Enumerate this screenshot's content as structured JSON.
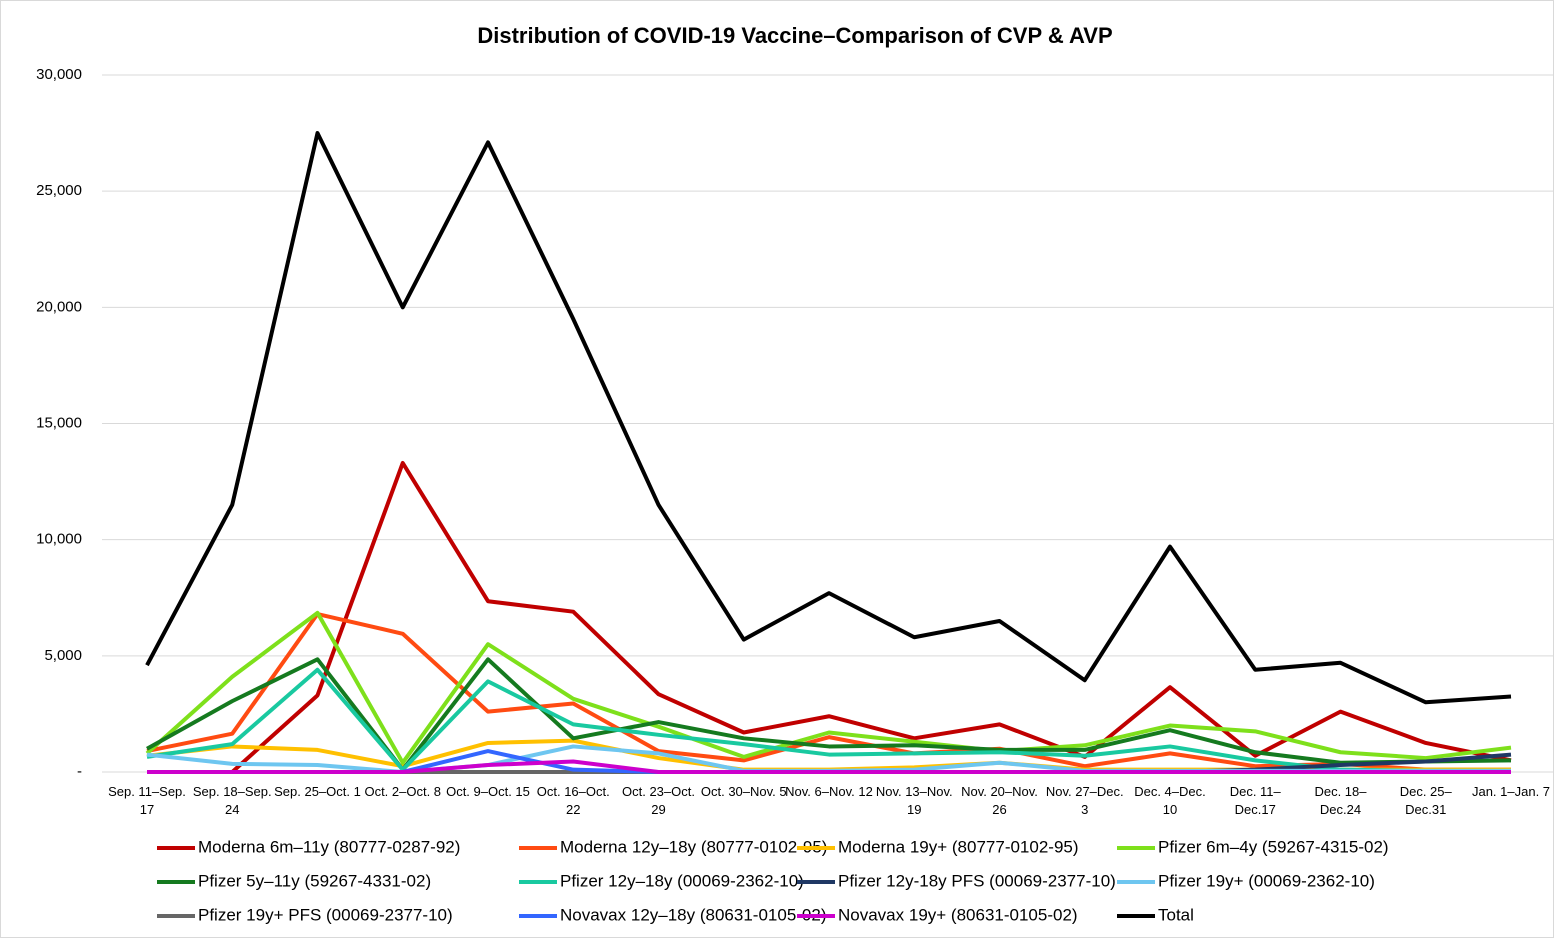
{
  "chart_data": {
    "type": "line",
    "title": "Distribution of COVID-19 Vaccine–Comparison of CVP & AVP",
    "categories": [
      "Sep. 11–Sep. 17",
      "Sep. 18–Sep. 24",
      "Sep. 25–Oct. 1",
      "Oct. 2–Oct. 8",
      "Oct. 9–Oct. 15",
      "Oct. 16–Oct. 22",
      "Oct. 23–Oct. 29",
      "Oct. 30–Nov. 5",
      "Nov. 6–Nov. 12",
      "Nov. 13–Nov. 19",
      "Nov. 20–Nov. 26",
      "Nov. 27–Dec. 3",
      "Dec. 4–Dec. 10",
      "Dec. 11–Dec.17",
      "Dec. 18–Dec.24",
      "Dec. 25–Dec.31",
      "Jan. 1–Jan. 7"
    ],
    "ylim": [
      0,
      30000
    ],
    "yticks": [
      {
        "value": 0,
        "label": "-"
      },
      {
        "value": 5000,
        "label": "5,000"
      },
      {
        "value": 10000,
        "label": "10,000"
      },
      {
        "value": 15000,
        "label": "15,000"
      },
      {
        "value": 20000,
        "label": "20,000"
      },
      {
        "value": 25000,
        "label": "25,000"
      },
      {
        "value": 30000,
        "label": "30,000"
      }
    ],
    "grid": true,
    "legend": "bottom",
    "series": [
      {
        "name": "Moderna 6m–11y (80777-0287-92)",
        "color": "#c00000",
        "values": [
          null,
          0,
          3300,
          13300,
          7350,
          6900,
          3350,
          1700,
          2400,
          1450,
          2050,
          650,
          3650,
          700,
          2600,
          1250,
          500
        ]
      },
      {
        "name": "Moderna 12y–18y (80777-0102-95)",
        "color": "#ff4b12",
        "values": [
          900,
          1650,
          6800,
          5950,
          2600,
          2950,
          900,
          500,
          1500,
          800,
          1000,
          250,
          800,
          250,
          350,
          100,
          100
        ]
      },
      {
        "name": "Moderna 19y+ (80777-0102-95)",
        "color": "#ffc000",
        "values": [
          700,
          1100,
          950,
          250,
          1250,
          1350,
          600,
          100,
          100,
          200,
          400,
          100,
          100,
          100,
          100,
          100,
          100
        ]
      },
      {
        "name": "Pfizer 6m–4y (59267-4315-02)",
        "color": "#7ee01b",
        "values": [
          800,
          4100,
          6850,
          400,
          5500,
          3150,
          1950,
          650,
          1700,
          1300,
          900,
          1150,
          2000,
          1750,
          850,
          600,
          1050
        ]
      },
      {
        "name": "Pfizer 5y–11y (59267-4331-02)",
        "color": "#157a1f",
        "values": [
          1000,
          3050,
          4850,
          100,
          4850,
          1450,
          2150,
          1450,
          1100,
          1150,
          950,
          950,
          1800,
          850,
          400,
          450,
          500
        ]
      },
      {
        "name": "Pfizer 12y–18y (00069-2362-10)",
        "color": "#19c9a0",
        "values": [
          650,
          1200,
          4400,
          100,
          3900,
          2050,
          1600,
          1200,
          750,
          800,
          850,
          700,
          1100,
          500,
          100,
          50,
          50
        ]
      },
      {
        "name": "Pfizer 12y-18y PFS (00069-2377-10)",
        "color": "#1f3864",
        "values": [
          null,
          null,
          null,
          0,
          0,
          0,
          0,
          0,
          0,
          0,
          0,
          0,
          0,
          100,
          300,
          450,
          750
        ]
      },
      {
        "name": "Pfizer 19y+ (00069-2362-10)",
        "color": "#6ec6f0",
        "values": [
          750,
          350,
          300,
          0,
          300,
          1100,
          800,
          50,
          50,
          100,
          400,
          50,
          50,
          50,
          50,
          50,
          50
        ]
      },
      {
        "name": "Pfizer 19y+ PFS (00069-2377-10)",
        "color": "#666666",
        "values": [
          0,
          0,
          0,
          0,
          0,
          0,
          0,
          0,
          0,
          0,
          0,
          0,
          0,
          0,
          0,
          0,
          0
        ]
      },
      {
        "name": "Novavax 12y–18y (80631-0105-02)",
        "color": "#3366ff",
        "values": [
          null,
          null,
          null,
          0,
          900,
          100,
          0,
          0,
          0,
          0,
          0,
          0,
          0,
          0,
          0,
          0,
          0
        ]
      },
      {
        "name": "Novavax 19y+ (80631-0105-02)",
        "color": "#cc00cc",
        "values": [
          0,
          0,
          0,
          0,
          300,
          450,
          0,
          0,
          0,
          0,
          0,
          0,
          0,
          0,
          0,
          0,
          0
        ]
      },
      {
        "name": "Total",
        "color": "#000000",
        "values": [
          4600,
          11500,
          27500,
          20000,
          27100,
          19500,
          11500,
          5700,
          7700,
          5800,
          6500,
          3950,
          9700,
          4400,
          4700,
          3000,
          3250
        ]
      }
    ]
  }
}
